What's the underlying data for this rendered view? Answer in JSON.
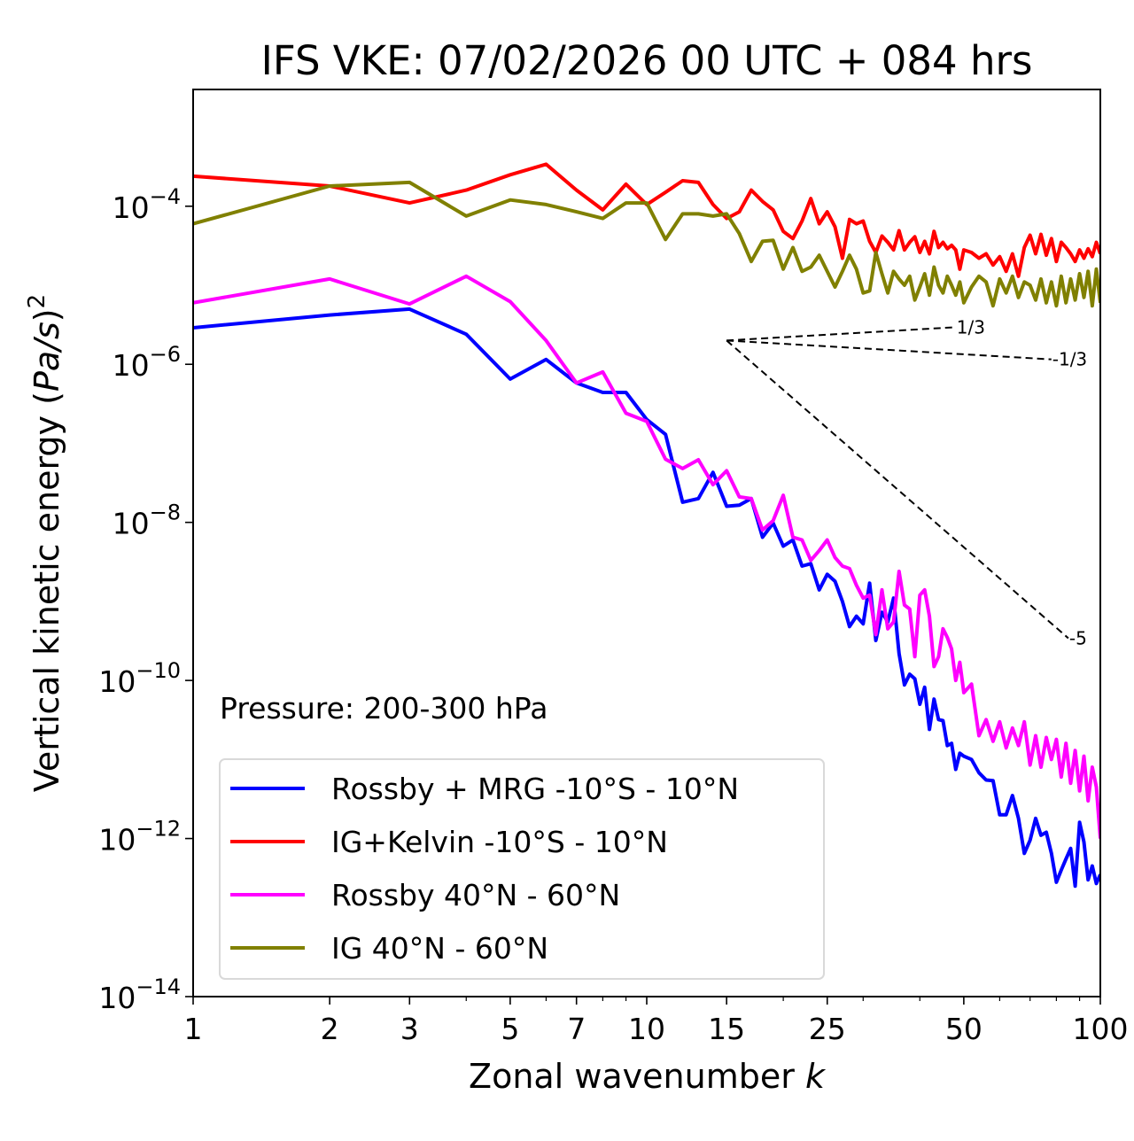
{
  "chart_data": {
    "type": "line",
    "title": "IFS VKE: 07/02/2026 00 UTC + 084 hrs",
    "xlabel": "Zonal wavenumber k",
    "xlabel_main": "Zonal wavenumber ",
    "xlabel_italic": "k",
    "ylabel": "Vertical kinetic energy (Pa/s)^2",
    "ylabel_main": "Vertical kinetic energy (",
    "ylabel_italic": "Pa/s",
    "ylabel_close": ")",
    "ylabel_sup": "2",
    "xscale": "log",
    "yscale": "log",
    "xlim": [
      1,
      100
    ],
    "ylim": [
      1e-14,
      0.003
    ],
    "grid": false,
    "x_ticks": [
      1,
      2,
      3,
      5,
      7,
      10,
      15,
      25,
      50,
      100
    ],
    "x_tick_labels": [
      "1",
      "2",
      "3",
      "5",
      "7",
      "10",
      "15",
      "25",
      "50",
      "100"
    ],
    "y_ticks": [
      0.0001,
      1e-06,
      1e-08,
      1e-10,
      1e-12,
      1e-14
    ],
    "y_tick_labels": [
      {
        "base": "10",
        "exp": "−4"
      },
      {
        "base": "10",
        "exp": "−6"
      },
      {
        "base": "10",
        "exp": "−8"
      },
      {
        "base": "10",
        "exp": "−10"
      },
      {
        "base": "10",
        "exp": "−12"
      },
      {
        "base": "10",
        "exp": "−14"
      }
    ],
    "annotation": "Pressure: 200-300 hPa",
    "legend": {
      "placement": "lower-left"
    },
    "series": [
      {
        "name": "Rossby + MRG -10°S - 10°N",
        "color": "#0000ff",
        "x": [
          1,
          2,
          3,
          4,
          5,
          6,
          7,
          8,
          9,
          10,
          11,
          12,
          13,
          14,
          15,
          16,
          17,
          18,
          19,
          20,
          21,
          22,
          23,
          24,
          25,
          26,
          27,
          28,
          29,
          30,
          31,
          32,
          33,
          34,
          35,
          36,
          37,
          38,
          39,
          40,
          41,
          42,
          43,
          44,
          45,
          46,
          47,
          48,
          49,
          50,
          52,
          54,
          56,
          58,
          60,
          62,
          64,
          66,
          68,
          70,
          72,
          74,
          76,
          78,
          80,
          82,
          84,
          86,
          88,
          90,
          92,
          94,
          96,
          98,
          100
        ],
        "values": [
          2.9e-06,
          4.2e-06,
          5e-06,
          2.4e-06,
          6.5e-07,
          1.15e-06,
          5.8e-07,
          4.4e-07,
          4.4e-07,
          2e-07,
          1.3e-07,
          1.8e-08,
          2e-08,
          4.3e-08,
          1.6e-08,
          1.65e-08,
          2e-08,
          6.5e-09,
          9.8e-09,
          5e-09,
          6e-09,
          2.8e-09,
          3e-09,
          1.4e-09,
          2.2e-09,
          1.8e-09,
          1e-09,
          4.8e-10,
          6.5e-10,
          5.2e-10,
          1.7e-09,
          3.2e-10,
          7.3e-10,
          5.5e-10,
          1.1e-09,
          2.2e-10,
          8.8e-11,
          1.2e-10,
          1.05e-10,
          5e-11,
          8.2e-11,
          2.4e-11,
          5.8e-11,
          3.2e-11,
          3.1e-11,
          1.5e-11,
          1.6e-11,
          7.5e-12,
          1.2e-11,
          1.1e-11,
          1e-11,
          6.8e-12,
          5.5e-12,
          5.4e-12,
          2e-12,
          2e-12,
          3.5e-12,
          1.8e-12,
          6.5e-13,
          9.5e-13,
          1.8e-12,
          1.1e-12,
          1.2e-12,
          6.5e-13,
          2.8e-13,
          4e-13,
          5.5e-13,
          7.5e-13,
          2.5e-13,
          1.6e-12,
          9e-13,
          3e-13,
          4.5e-13,
          2.7e-13,
          3.5e-13
        ]
      },
      {
        "name": "IG+Kelvin -10°S - 10°N",
        "color": "#ff0000",
        "x": [
          1,
          2,
          3,
          4,
          5,
          6,
          7,
          8,
          9,
          10,
          11,
          12,
          13,
          14,
          15,
          16,
          17,
          18,
          19,
          20,
          21,
          22,
          23,
          24,
          25,
          26,
          27,
          28,
          29,
          30,
          31,
          32,
          33,
          34,
          35,
          36,
          37,
          38,
          39,
          40,
          41,
          42,
          43,
          44,
          45,
          46,
          47,
          48,
          49,
          50,
          52,
          54,
          56,
          58,
          60,
          62,
          64,
          66,
          68,
          70,
          72,
          74,
          76,
          78,
          80,
          82,
          84,
          86,
          88,
          90,
          92,
          94,
          96,
          98,
          100
        ],
        "values": [
          0.00024,
          0.00018,
          0.00011,
          0.00016,
          0.00025,
          0.00034,
          0.00016,
          9e-05,
          0.00019,
          0.000105,
          0.00015,
          0.00021,
          0.0002,
          0.000105,
          7e-05,
          8.5e-05,
          0.00016,
          0.000115,
          9e-05,
          4.8e-05,
          3.9e-05,
          6.5e-05,
          0.000125,
          6e-05,
          8.5e-05,
          5.5e-05,
          2.2e-05,
          6.8e-05,
          6e-05,
          6.5e-05,
          3.6e-05,
          2.6e-05,
          4.2e-05,
          3.5e-05,
          2.8e-05,
          4.9e-05,
          2.8e-05,
          3.5e-05,
          4.1e-05,
          2.6e-05,
          3.6e-05,
          2.5e-05,
          4.8e-05,
          3e-05,
          3.5e-05,
          2.9e-05,
          3.2e-05,
          2.8e-05,
          1.6e-05,
          2.8e-05,
          2.6e-05,
          2.2e-05,
          2.5e-05,
          1.8e-05,
          2.3e-05,
          1.5e-05,
          2.5e-05,
          1.3e-05,
          3e-05,
          4.3e-05,
          2.5e-05,
          4.4e-05,
          2.4e-05,
          3.9e-05,
          2e-05,
          3.5e-05,
          3e-05,
          2.5e-05,
          2e-05,
          2.8e-05,
          2.2e-05,
          2.9e-05,
          2.3e-05,
          3.5e-05,
          2.5e-05
        ]
      },
      {
        "name": "Rossby 40°N - 60°N",
        "color": "#ff00ff",
        "x": [
          1,
          2,
          3,
          4,
          5,
          6,
          7,
          8,
          9,
          10,
          11,
          12,
          13,
          14,
          15,
          16,
          17,
          18,
          19,
          20,
          21,
          22,
          23,
          24,
          25,
          26,
          27,
          28,
          29,
          30,
          31,
          32,
          33,
          34,
          35,
          36,
          37,
          38,
          39,
          40,
          41,
          42,
          43,
          44,
          45,
          46,
          47,
          48,
          49,
          50,
          52,
          54,
          56,
          58,
          60,
          62,
          64,
          66,
          68,
          70,
          72,
          74,
          76,
          78,
          80,
          82,
          84,
          86,
          88,
          90,
          92,
          94,
          96,
          98,
          100
        ],
        "values": [
          6e-06,
          1.2e-05,
          5.8e-06,
          1.3e-05,
          6.2e-06,
          2e-06,
          5.8e-07,
          8e-07,
          2.4e-07,
          1.9e-07,
          6.3e-08,
          4.8e-08,
          6.2e-08,
          3e-08,
          4.5e-08,
          2.1e-08,
          2e-08,
          8e-09,
          1.05e-08,
          2.2e-08,
          6.5e-09,
          6e-09,
          3.3e-09,
          4.4e-09,
          6e-09,
          3.6e-09,
          2.8e-09,
          2.6e-09,
          1.6e-09,
          1.1e-09,
          1.2e-09,
          3.8e-10,
          1.4e-09,
          4.5e-10,
          5.5e-10,
          2.4e-09,
          9e-10,
          8e-10,
          2e-10,
          1.2e-09,
          1.4e-09,
          6.5e-10,
          1.5e-10,
          2e-10,
          4.5e-10,
          3.5e-10,
          2.5e-10,
          1e-10,
          1.7e-10,
          7e-11,
          9e-11,
          2e-11,
          3.2e-11,
          1.7e-11,
          3e-11,
          1.4e-11,
          2.5e-11,
          1.5e-11,
          3e-11,
          8.5e-12,
          2e-11,
          8e-12,
          1.9e-11,
          1e-11,
          1.8e-11,
          6e-12,
          1.6e-11,
          5e-12,
          1.3e-11,
          4e-12,
          1.1e-11,
          3e-12,
          8e-12,
          4.5e-12,
          1e-12
        ]
      },
      {
        "name": "IG 40°N - 60°N",
        "color": "#808000",
        "x": [
          1,
          2,
          3,
          4,
          5,
          6,
          7,
          8,
          9,
          10,
          11,
          12,
          13,
          14,
          15,
          16,
          17,
          18,
          19,
          20,
          21,
          22,
          23,
          24,
          25,
          26,
          27,
          28,
          29,
          30,
          31,
          32,
          33,
          34,
          35,
          36,
          37,
          38,
          39,
          40,
          41,
          42,
          43,
          44,
          45,
          46,
          47,
          48,
          49,
          50,
          52,
          54,
          56,
          58,
          60,
          62,
          64,
          66,
          68,
          70,
          72,
          74,
          76,
          78,
          80,
          82,
          84,
          86,
          88,
          90,
          92,
          94,
          96,
          98,
          100
        ],
        "values": [
          6e-05,
          0.00018,
          0.0002,
          7.5e-05,
          0.00012,
          0.000105,
          8.5e-05,
          7e-05,
          0.00011,
          0.00011,
          3.8e-05,
          8e-05,
          8e-05,
          7.5e-05,
          8e-05,
          4.5e-05,
          2e-05,
          3.6e-05,
          3.7e-05,
          1.6e-05,
          3e-05,
          1.5e-05,
          1.7e-05,
          2.4e-05,
          1.5e-05,
          9.5e-06,
          1.5e-05,
          2.4e-05,
          1.6e-05,
          8e-06,
          8.5e-06,
          2.6e-05,
          1.4e-05,
          8e-06,
          1.5e-05,
          1.2e-05,
          1e-05,
          1.3e-05,
          6.5e-06,
          9.5e-06,
          1.4e-05,
          7.5e-06,
          1.7e-05,
          1e-05,
          8e-06,
          1.3e-05,
          1e-05,
          7.5e-06,
          1.1e-05,
          6e-06,
          9.5e-06,
          1.3e-05,
          1.1e-05,
          5.5e-06,
          1.2e-05,
          8e-06,
          1.3e-05,
          7e-06,
          1.1e-05,
          1e-05,
          6.5e-06,
          1.2e-05,
          6e-06,
          1.1e-05,
          5.5e-06,
          1.3e-05,
          6e-06,
          1.2e-05,
          6.5e-06,
          1.4e-05,
          7e-06,
          1.5e-05,
          5.5e-06,
          1.6e-05,
          6e-06
        ]
      }
    ],
    "reference_lines": [
      {
        "slope_label": "1/3",
        "exponent": 0.3333,
        "x_start": 15,
        "y_start": 2e-06,
        "x_end": 48
      },
      {
        "slope_label": "-1/3",
        "exponent": -0.3333,
        "x_start": 15,
        "y_start": 2e-06,
        "x_end": 78
      },
      {
        "slope_label": "-5",
        "exponent": -5,
        "x_start": 15,
        "y_start": 2e-06,
        "x_end": 85
      }
    ]
  }
}
